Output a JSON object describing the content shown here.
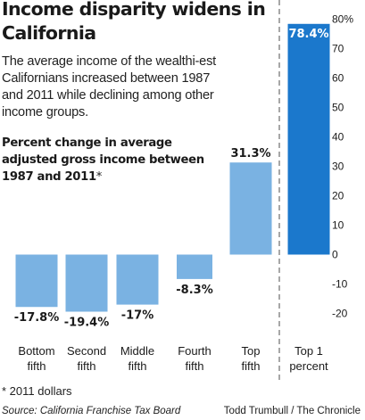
{
  "title": "Income disparity widens in California",
  "subtitle": "The average income of the wealthi-est Californians increased between 1987 and 2011 while declining among other income groups.",
  "chart_heading": "Percent change in average adjusted gross income between 1987 and 2011",
  "chart_heading_mark": "*",
  "footnote": "* 2011 dollars",
  "source": "Source: California Franchise Tax Board",
  "credit": "Todd Trumbull / The Chronicle",
  "colors": {
    "bar": "#7ab2e2",
    "highlight_bar": "#1b78cc",
    "highlight_label_text": "#ffffff",
    "divider": "#8a8a8a",
    "text": "#1a1a1a"
  },
  "chart_data": {
    "type": "bar",
    "categories": [
      "Bottom fifth",
      "Second fifth",
      "Middle fifth",
      "Fourth fifth",
      "Top fifth",
      "Top 1 percent"
    ],
    "values": [
      -17.8,
      -19.4,
      -17,
      -8.3,
      31.3,
      78.4
    ],
    "value_labels": [
      "-17.8%",
      "-19.4%",
      "-17%",
      "-8.3%",
      "31.3%",
      "78.4%"
    ],
    "highlighted_category": "Top 1 percent",
    "ylim": [
      -20,
      80
    ],
    "yticks": [
      80,
      70,
      60,
      50,
      40,
      30,
      20,
      10,
      0,
      -10,
      -20
    ],
    "ytick_labels": [
      "80%",
      "70",
      "60",
      "50",
      "40",
      "30",
      "20",
      "10",
      "0",
      "-10",
      "-20"
    ],
    "y_axis_position": "right",
    "divider_before_category": "Top 1 percent",
    "grid": false,
    "legend": "none"
  }
}
